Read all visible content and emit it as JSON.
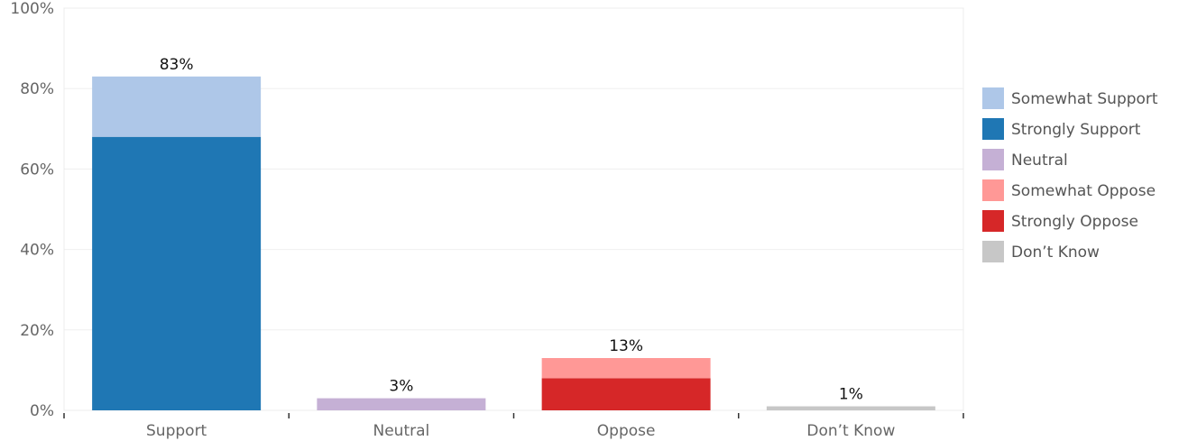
{
  "chart_data": {
    "type": "bar",
    "stacked": true,
    "title": "",
    "xlabel": "",
    "ylabel": "",
    "ylim": [
      0,
      100
    ],
    "yticks": [
      "0%",
      "20%",
      "40%",
      "60%",
      "80%",
      "100%"
    ],
    "ytick_values": [
      0,
      20,
      40,
      60,
      80,
      100
    ],
    "categories": [
      "Support",
      "Neutral",
      "Oppose",
      "Don’t Know"
    ],
    "totals": [
      83,
      3,
      13,
      1
    ],
    "total_labels": [
      "83%",
      "3%",
      "13%",
      "1%"
    ],
    "segments": [
      {
        "category": "Support",
        "series": "Strongly Support",
        "value": 68
      },
      {
        "category": "Support",
        "series": "Somewhat Support",
        "value": 15
      },
      {
        "category": "Neutral",
        "series": "Neutral",
        "value": 3
      },
      {
        "category": "Oppose",
        "series": "Strongly Oppose",
        "value": 8
      },
      {
        "category": "Oppose",
        "series": "Somewhat Oppose",
        "value": 5
      },
      {
        "category": "Don’t Know",
        "series": "Don’t Know",
        "value": 1
      }
    ],
    "legend": [
      {
        "name": "Somewhat Support",
        "color": "#aec7e8"
      },
      {
        "name": "Strongly Support",
        "color": "#1f77b4"
      },
      {
        "name": "Neutral",
        "color": "#c5b0d5"
      },
      {
        "name": "Somewhat Oppose",
        "color": "#ff9896"
      },
      {
        "name": "Strongly Oppose",
        "color": "#d62728"
      },
      {
        "name": "Don’t Know",
        "color": "#c7c7c7"
      }
    ],
    "legend_position": "right",
    "grid": true
  }
}
